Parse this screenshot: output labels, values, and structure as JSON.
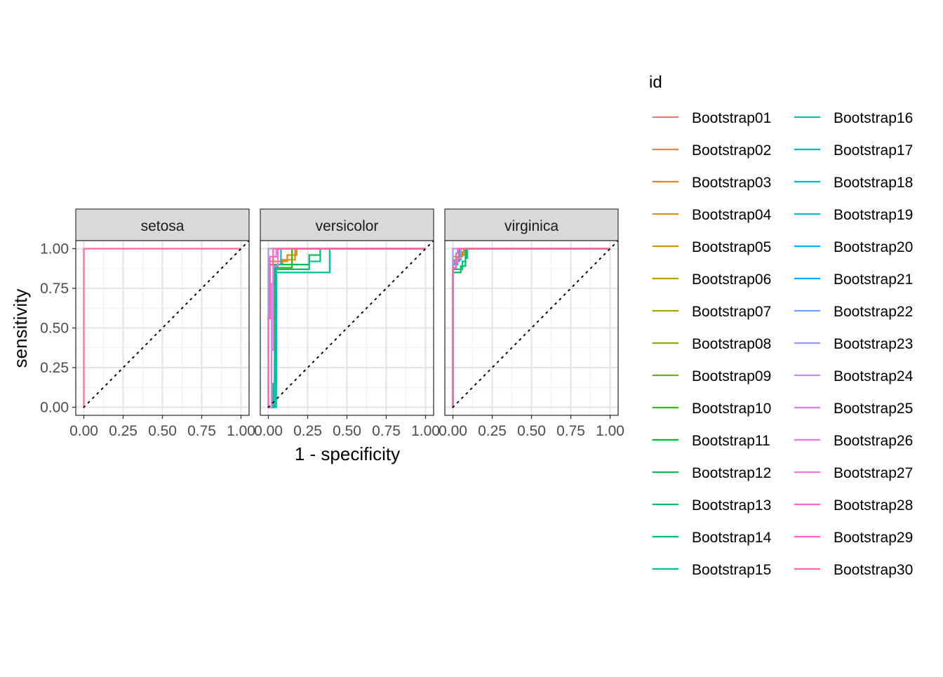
{
  "chart_data": {
    "type": "line",
    "xlabel": "1 - specificity",
    "ylabel": "sensitivity",
    "xlim": [
      0,
      1
    ],
    "ylim": [
      0,
      1
    ],
    "x_ticks": [
      "0.00",
      "0.25",
      "0.50",
      "0.75",
      "1.00"
    ],
    "y_ticks": [
      "0.00",
      "0.25",
      "0.50",
      "0.75",
      "1.00"
    ],
    "x_tick_values": [
      0,
      0.25,
      0.5,
      0.75,
      1
    ],
    "y_tick_values": [
      0,
      0.25,
      0.5,
      0.75,
      1
    ],
    "grid": true,
    "reference_line": "diagonal dotted",
    "legend_title": "id",
    "legend_position": "right",
    "facets": [
      "setosa",
      "versicolor",
      "virginica"
    ],
    "series_names": [
      "Bootstrap01",
      "Bootstrap02",
      "Bootstrap03",
      "Bootstrap04",
      "Bootstrap05",
      "Bootstrap06",
      "Bootstrap07",
      "Bootstrap08",
      "Bootstrap09",
      "Bootstrap10",
      "Bootstrap11",
      "Bootstrap12",
      "Bootstrap13",
      "Bootstrap14",
      "Bootstrap15",
      "Bootstrap16",
      "Bootstrap17",
      "Bootstrap18",
      "Bootstrap19",
      "Bootstrap20",
      "Bootstrap21",
      "Bootstrap22",
      "Bootstrap23",
      "Bootstrap24",
      "Bootstrap25",
      "Bootstrap26",
      "Bootstrap27",
      "Bootstrap28",
      "Bootstrap29",
      "Bootstrap30"
    ],
    "series_colors": [
      "#F8766D",
      "#F17D51",
      "#E7851E",
      "#DA8E00",
      "#CB9600",
      "#B99E00",
      "#A4A500",
      "#8BAB00",
      "#6BB100",
      "#3AB500",
      "#00B92C",
      "#00BB4F",
      "#00BE6A",
      "#00C081",
      "#00C097",
      "#00BFAB",
      "#00BDBE",
      "#00BBD0",
      "#00B7E0",
      "#00B2EE",
      "#00ACFA",
      "#6DA3FF",
      "#9D97FF",
      "#C28BFF",
      "#DF80F6",
      "#EE7AE7",
      "#F873D9",
      "#FF6CC8",
      "#FF68B6",
      "#FF67A4"
    ],
    "curves": {
      "setosa": [
        {
          "series": 30,
          "points": [
            [
              0,
              0
            ],
            [
              0,
              1
            ],
            [
              1,
              1
            ]
          ]
        }
      ],
      "versicolor": [
        {
          "series": 3,
          "points": [
            [
              0,
              0
            ],
            [
              0,
              0.9
            ],
            [
              0.09,
              0.9
            ],
            [
              0.09,
              0.93
            ],
            [
              0.17,
              0.93
            ],
            [
              0.17,
              1
            ],
            [
              1,
              1
            ]
          ]
        },
        {
          "series": 4,
          "points": [
            [
              0,
              0
            ],
            [
              0,
              0.92
            ],
            [
              0.12,
              0.92
            ],
            [
              0.12,
              0.96
            ],
            [
              0.18,
              0.96
            ],
            [
              0.18,
              1
            ],
            [
              1,
              1
            ]
          ]
        },
        {
          "series": 10,
          "points": [
            [
              0,
              0
            ],
            [
              0.04,
              0
            ],
            [
              0.04,
              0.31
            ],
            [
              0.05,
              0.31
            ],
            [
              0.05,
              0.88
            ],
            [
              0.15,
              0.88
            ],
            [
              0.15,
              1
            ],
            [
              1,
              1
            ]
          ]
        },
        {
          "series": 12,
          "points": [
            [
              0,
              0
            ],
            [
              0.02,
              0
            ],
            [
              0.02,
              0.08
            ],
            [
              0.04,
              0.08
            ],
            [
              0.04,
              0.9
            ],
            [
              0.26,
              0.9
            ],
            [
              0.26,
              0.96
            ],
            [
              0.33,
              0.96
            ],
            [
              0.33,
              1
            ],
            [
              1,
              1
            ]
          ]
        },
        {
          "series": 14,
          "points": [
            [
              0,
              0
            ],
            [
              0.03,
              0
            ],
            [
              0.03,
              0.15
            ],
            [
              0.05,
              0.15
            ],
            [
              0.05,
              0.87
            ],
            [
              0.26,
              0.87
            ],
            [
              0.26,
              0.92
            ],
            [
              0.33,
              0.92
            ],
            [
              0.33,
              1
            ],
            [
              1,
              1
            ]
          ]
        },
        {
          "series": 15,
          "points": [
            [
              0,
              0
            ],
            [
              0.05,
              0
            ],
            [
              0.05,
              0.85
            ],
            [
              0.39,
              0.85
            ],
            [
              0.39,
              0.98
            ],
            [
              0.39,
              1
            ],
            [
              1,
              1
            ]
          ]
        },
        {
          "series": 17,
          "points": [
            [
              0,
              0
            ],
            [
              0.04,
              0
            ],
            [
              0.04,
              0.35
            ],
            [
              0.05,
              0.35
            ],
            [
              0.05,
              0.9
            ],
            [
              0.08,
              0.9
            ],
            [
              0.08,
              1
            ],
            [
              1,
              1
            ]
          ]
        },
        {
          "series": 23,
          "points": [
            [
              0,
              0
            ],
            [
              0,
              1
            ],
            [
              1,
              1
            ]
          ]
        },
        {
          "series": 24,
          "points": [
            [
              0,
              0
            ],
            [
              0.02,
              0
            ],
            [
              0.02,
              0.78
            ],
            [
              0.03,
              0.78
            ],
            [
              0.03,
              0.95
            ],
            [
              0.05,
              0.95
            ],
            [
              0.05,
              1
            ],
            [
              1,
              1
            ]
          ]
        },
        {
          "series": 26,
          "points": [
            [
              0,
              0
            ],
            [
              0.02,
              0
            ],
            [
              0.02,
              0.36
            ],
            [
              0.03,
              0.36
            ],
            [
              0.03,
              0.89
            ],
            [
              0.06,
              0.89
            ],
            [
              0.06,
              1
            ],
            [
              1,
              1
            ]
          ]
        },
        {
          "series": 28,
          "points": [
            [
              0,
              0
            ],
            [
              0,
              0.57
            ],
            [
              0.01,
              0.57
            ],
            [
              0.01,
              0.95
            ],
            [
              0.06,
              0.95
            ],
            [
              0.06,
              1
            ],
            [
              1,
              1
            ]
          ]
        },
        {
          "series": 30,
          "points": [
            [
              0,
              0
            ],
            [
              0,
              0.56
            ],
            [
              0.01,
              0.56
            ],
            [
              0.01,
              0.9
            ],
            [
              0.03,
              0.9
            ],
            [
              0.03,
              1
            ],
            [
              1,
              1
            ]
          ]
        }
      ],
      "virginica": [
        {
          "series": 3,
          "points": [
            [
              0,
              0
            ],
            [
              0,
              0.93
            ],
            [
              0.04,
              0.93
            ],
            [
              0.04,
              0.96
            ],
            [
              0.07,
              0.96
            ],
            [
              0.07,
              1
            ],
            [
              1,
              1
            ]
          ]
        },
        {
          "series": 5,
          "points": [
            [
              0,
              0
            ],
            [
              0,
              0.95
            ],
            [
              0.06,
              0.95
            ],
            [
              0.06,
              0.98
            ],
            [
              0.07,
              0.98
            ],
            [
              0.07,
              1
            ],
            [
              1,
              1
            ]
          ]
        },
        {
          "series": 12,
          "points": [
            [
              0,
              0
            ],
            [
              0,
              0.85
            ],
            [
              0.05,
              0.85
            ],
            [
              0.05,
              0.89
            ],
            [
              0.08,
              0.89
            ],
            [
              0.08,
              0.94
            ],
            [
              0.09,
              0.94
            ],
            [
              0.09,
              1
            ],
            [
              1,
              1
            ]
          ]
        },
        {
          "series": 14,
          "points": [
            [
              0,
              0
            ],
            [
              0,
              0.87
            ],
            [
              0.06,
              0.87
            ],
            [
              0.06,
              0.92
            ],
            [
              0.08,
              0.92
            ],
            [
              0.08,
              1
            ],
            [
              1,
              1
            ]
          ]
        },
        {
          "series": 17,
          "points": [
            [
              0,
              0
            ],
            [
              0,
              0.9
            ],
            [
              0.03,
              0.9
            ],
            [
              0.03,
              0.93
            ],
            [
              0.05,
              0.93
            ],
            [
              0.05,
              1
            ],
            [
              1,
              1
            ]
          ]
        },
        {
          "series": 20,
          "points": [
            [
              0,
              0
            ],
            [
              0,
              0.92
            ],
            [
              0.04,
              0.92
            ],
            [
              0.04,
              1
            ],
            [
              1,
              1
            ]
          ]
        },
        {
          "series": 23,
          "points": [
            [
              0,
              0
            ],
            [
              0,
              1
            ],
            [
              1,
              1
            ]
          ]
        },
        {
          "series": 27,
          "points": [
            [
              0,
              0
            ],
            [
              0,
              0.91
            ],
            [
              0.03,
              0.91
            ],
            [
              0.03,
              0.94
            ],
            [
              0.05,
              0.94
            ],
            [
              0.05,
              1
            ],
            [
              1,
              1
            ]
          ]
        },
        {
          "series": 30,
          "points": [
            [
              0,
              0
            ],
            [
              0,
              0.88
            ],
            [
              0.02,
              0.88
            ],
            [
              0.02,
              0.97
            ],
            [
              0.03,
              0.97
            ],
            [
              0.03,
              1
            ],
            [
              1,
              1
            ]
          ]
        }
      ]
    }
  }
}
